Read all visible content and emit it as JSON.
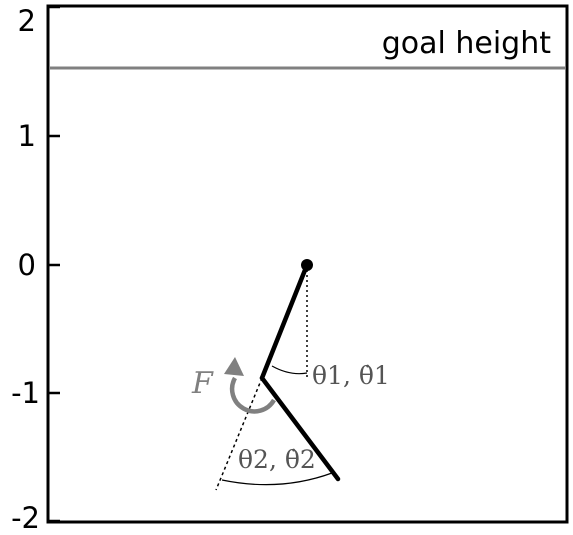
{
  "chart_data": {
    "type": "diagram",
    "title": "",
    "ylim": [
      -2,
      2
    ],
    "yticks": [
      {
        "value": 2,
        "label": "2"
      },
      {
        "value": 1,
        "label": "1"
      },
      {
        "value": 0,
        "label": "0"
      },
      {
        "value": -1,
        "label": "-1"
      },
      {
        "value": -2,
        "label": "-2"
      }
    ],
    "goal": {
      "label": "goal height",
      "value": 1.53,
      "color": "#808080"
    },
    "pendulum": {
      "pivot": [
        0,
        0
      ],
      "elbow": [
        -0.36,
        -0.88
      ],
      "tip": [
        0.25,
        -1.67
      ],
      "link_color": "#000000"
    },
    "annotations": {
      "joint1_label": "θ1, θ̇1",
      "joint2_label": "θ2, θ̇2",
      "force_label": "F",
      "force_color": "#808080"
    }
  }
}
